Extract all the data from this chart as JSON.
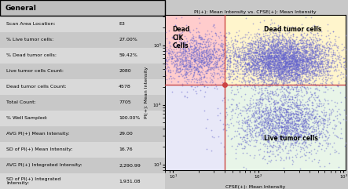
{
  "table_title": "General",
  "table_rows": [
    [
      "Scan Area Location:",
      "E3"
    ],
    [
      "% Live tumor cells:",
      "27.00%"
    ],
    [
      "% Dead tumor cells:",
      "59.42%"
    ],
    [
      "Live tumor cells Count:",
      "2080"
    ],
    [
      "Dead tumor cells Count:",
      "4578"
    ],
    [
      "Total Count:",
      "7705"
    ],
    [
      "% Well Sampled:",
      "100.00%"
    ],
    [
      "AVG PI(+) Mean Intensity:",
      "29.00"
    ],
    [
      "SD of PI(+) Mean Intensity:",
      "16.76"
    ],
    [
      "AVG PI(+) Integrated Intensity:",
      "2,290.99"
    ],
    [
      "SD of PI(+) Integrated\nIntensity:",
      "1,931.08"
    ]
  ],
  "table_bg": "#d9d9d9",
  "table_title_bg": "#bfbfbf",
  "scatter_title": "PI(+): Mean Intensity vs. CFSE(+): Mean Intensity",
  "scatter_xlabel": "CFSE(+): Mean Intensity",
  "scatter_ylabel": "PI(+): Mean Intensity",
  "scatter_dot_color": "#6666cc",
  "scatter_dot_alpha": 0.5,
  "scatter_dot_size": 1.5,
  "xline": 40.0,
  "yline": 22000.0,
  "xlim_log": [
    8,
    1050
  ],
  "ylim_log": [
    800,
    320000
  ],
  "quadrant_colors": {
    "top_left": "#ffcccc",
    "top_right": "#fff5cc",
    "bottom_left": "#e8e8f8",
    "bottom_right": "#e8f5e8"
  },
  "label_dead_cik": "Dead\nCIK\nCells",
  "label_dead_tumor": "Dead tumor cells",
  "label_live_tumor": "Live tumor cells",
  "crosshair_color": "#cc4444",
  "scatter_bg": "#f8f8f8",
  "seed": 42
}
